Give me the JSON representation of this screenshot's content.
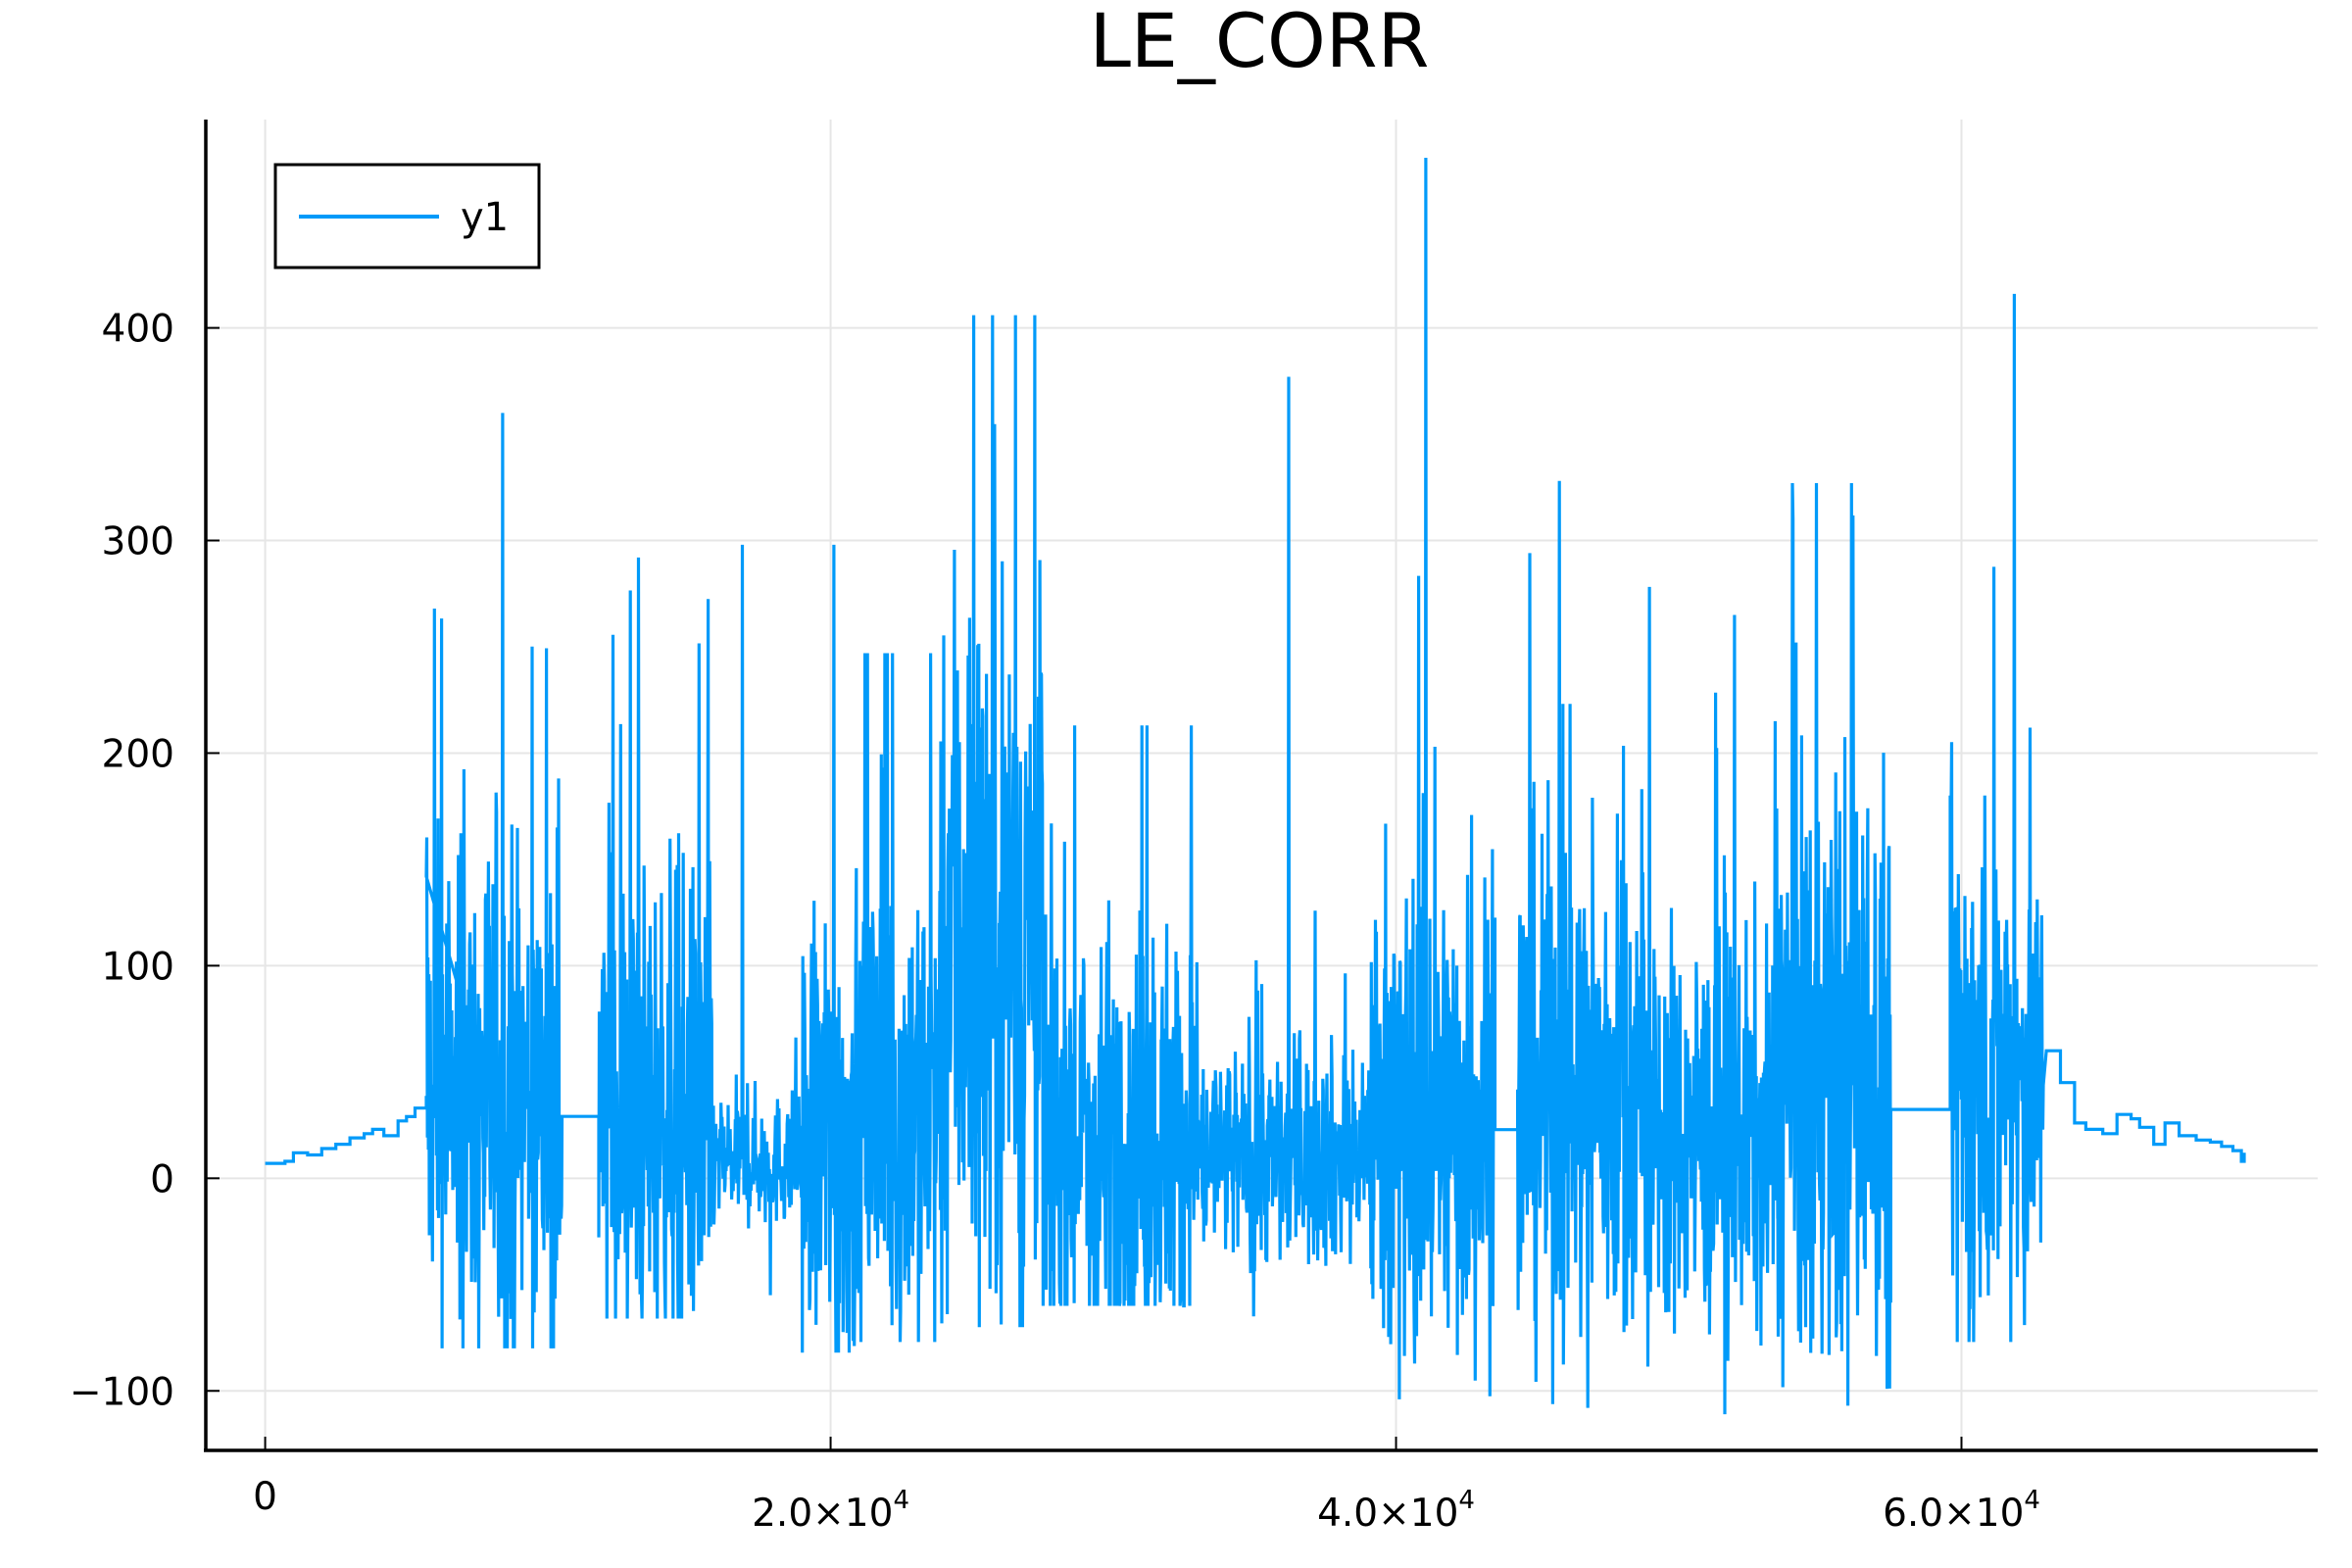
{
  "chart_data": {
    "type": "line",
    "title": "LE_CORR",
    "xlabel": "",
    "ylabel": "",
    "xlim": [
      -2100,
      72600
    ],
    "ylim": [
      -128,
      498
    ],
    "grid": true,
    "legend_position": "top-left",
    "series_color": "#009AF9",
    "x_ticks": [
      {
        "value": 0,
        "label": "0",
        "exp": ""
      },
      {
        "value": 20000,
        "label": "2.0×10",
        "exp": "4"
      },
      {
        "value": 40000,
        "label": "4.0×10",
        "exp": "4"
      },
      {
        "value": 60000,
        "label": "6.0×10",
        "exp": "4"
      }
    ],
    "y_ticks": [
      {
        "value": -100,
        "label": "−100"
      },
      {
        "value": 0,
        "label": "0"
      },
      {
        "value": 100,
        "label": "100"
      },
      {
        "value": 200,
        "label": "200"
      },
      {
        "value": 300,
        "label": "300"
      },
      {
        "value": 400,
        "label": "400"
      }
    ],
    "series": [
      {
        "name": "y1",
        "x_start": 0,
        "x_end": 70000,
        "baseline_steps": [
          [
            0,
            7
          ],
          [
            700,
            8
          ],
          [
            1000,
            12
          ],
          [
            1500,
            11
          ],
          [
            2000,
            14
          ],
          [
            2500,
            16
          ],
          [
            3000,
            19
          ],
          [
            3500,
            21
          ],
          [
            3800,
            23
          ],
          [
            4200,
            20
          ],
          [
            4700,
            27
          ],
          [
            5000,
            29
          ],
          [
            5300,
            33
          ],
          [
            5700,
            38
          ],
          [
            6400,
            37
          ],
          [
            6800,
            32
          ],
          [
            7300,
            34
          ],
          [
            7700,
            50
          ]
        ],
        "tail_steps": [
          [
            63000,
            60
          ],
          [
            63500,
            45
          ],
          [
            64000,
            26
          ],
          [
            64400,
            23
          ],
          [
            65000,
            21
          ],
          [
            65500,
            30
          ],
          [
            66000,
            28
          ],
          [
            66300,
            24
          ],
          [
            66800,
            16
          ],
          [
            67200,
            26
          ],
          [
            67700,
            20
          ],
          [
            68300,
            18
          ],
          [
            68800,
            17
          ],
          [
            69200,
            15
          ],
          [
            69600,
            13
          ],
          [
            69900,
            8
          ],
          [
            70000,
            12
          ]
        ],
        "bursts": [
          {
            "start": 5700,
            "end": 10500,
            "center": 40,
            "spread": 60,
            "max": 360,
            "min": -80
          },
          {
            "start": 11800,
            "end": 15800,
            "center": 30,
            "spread": 55,
            "max": 292,
            "min": -66
          },
          {
            "start": 15800,
            "end": 19000,
            "center": 8,
            "spread": 15,
            "max": 298,
            "min": -55
          },
          {
            "start": 19000,
            "end": 21000,
            "center": 20,
            "spread": 55,
            "max": 298,
            "min": -82
          },
          {
            "start": 21000,
            "end": 24000,
            "center": 35,
            "spread": 60,
            "max": 247,
            "min": -77
          },
          {
            "start": 24000,
            "end": 27500,
            "center": 120,
            "spread": 90,
            "max": 406,
            "min": -70
          },
          {
            "start": 27500,
            "end": 33000,
            "center": 20,
            "spread": 50,
            "max": 213,
            "min": -60
          },
          {
            "start": 33000,
            "end": 39000,
            "center": 10,
            "spread": 25,
            "max": 377,
            "min": -65
          },
          {
            "start": 39000,
            "end": 43500,
            "center": 30,
            "spread": 55,
            "max": 480,
            "min": -104
          },
          {
            "start": 44300,
            "end": 49000,
            "center": 40,
            "spread": 60,
            "max": 328,
            "min": -108
          },
          {
            "start": 49000,
            "end": 53500,
            "center": 20,
            "spread": 45,
            "max": 265,
            "min": -111
          },
          {
            "start": 53500,
            "end": 57500,
            "center": 50,
            "spread": 70,
            "max": 327,
            "min": -107
          },
          {
            "start": 59600,
            "end": 62900,
            "center": 50,
            "spread": 60,
            "max": 416,
            "min": -77
          }
        ]
      }
    ]
  }
}
